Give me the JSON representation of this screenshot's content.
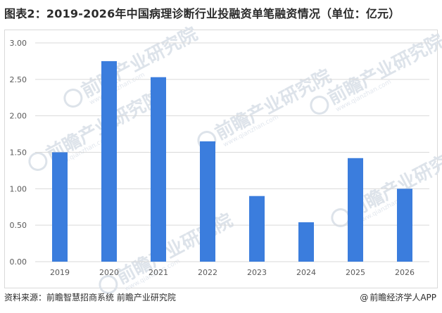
{
  "title": "图表2：2019-2026年中国病理诊断行业投融资单笔融资情况（单位：亿元）",
  "footer": {
    "source": "资料来源：前瞻智慧招商系统 前瞻产业研究院",
    "brand_symbol": "@",
    "brand": "前瞻经济学人APP"
  },
  "watermark": {
    "text": "前瞻产业研究院",
    "subtext": "www.qianzhan.com"
  },
  "colors": {
    "bar": "#3b7ddd",
    "grid": "#d9d9d9",
    "axis_text": "#595959"
  },
  "chart_data": {
    "type": "bar",
    "categories": [
      "2019",
      "2020",
      "2021",
      "2022",
      "2023",
      "2024",
      "2025",
      "2026"
    ],
    "values": [
      1.5,
      2.75,
      2.53,
      1.65,
      0.9,
      0.54,
      1.42,
      1.0
    ],
    "yticks": [
      "0.00",
      "0.50",
      "1.00",
      "1.50",
      "2.00",
      "2.50",
      "3.00"
    ],
    "ylim": [
      0,
      3
    ],
    "xlabel": "",
    "ylabel": "",
    "grid": true,
    "legend": "none"
  }
}
